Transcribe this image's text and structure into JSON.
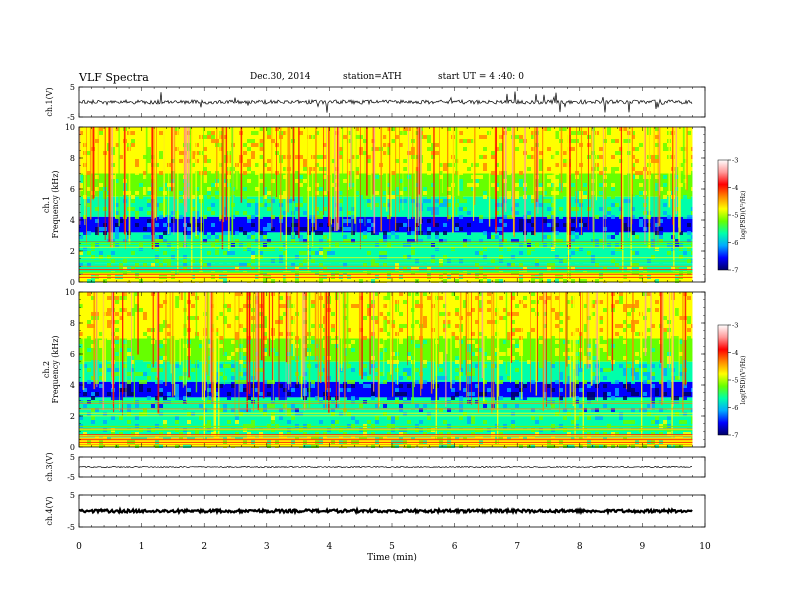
{
  "header": {
    "title": "VLF  Spectra",
    "date": "Dec.30, 2014",
    "station": "station=ATH",
    "start": "start  UT  =   4  :40: 0"
  },
  "chart_data": [
    {
      "type": "line",
      "panel": "ch1-waveform",
      "ylabel": "ch.1(V)",
      "yticks": [
        "5",
        "-5"
      ],
      "ylim": [
        -5,
        5
      ],
      "xlim": [
        0,
        10
      ],
      "baseline": 0,
      "x_end": 9.8
    },
    {
      "type": "heatmap",
      "panel": "ch1-spectrogram",
      "ylabel": "ch.1\nFrequency (kHz)",
      "ylabel_lines": [
        "ch.1",
        "Frequency (kHz)"
      ],
      "yticks": [
        "0",
        "2",
        "4",
        "6",
        "8",
        "10"
      ],
      "ylim": [
        0,
        10
      ],
      "xlim": [
        0,
        10
      ],
      "x_end": 9.8,
      "colorbar": {
        "label": "log(PSD)(V²/Hz)",
        "range": [
          -7,
          -3
        ],
        "ticks": [
          "-3",
          "-4",
          "-5",
          "-6",
          "-7"
        ],
        "colors": [
          "#000066",
          "#0000ff",
          "#00aaff",
          "#00ffaa",
          "#66ff00",
          "#ffff00",
          "#ff8800",
          "#ff0000",
          "#ff9999",
          "#ffffff"
        ]
      }
    },
    {
      "type": "heatmap",
      "panel": "ch2-spectrogram",
      "ylabel": "ch.2\nFrequency (kHz)",
      "ylabel_lines": [
        "ch.2",
        "Frequency (kHz)"
      ],
      "yticks": [
        "0",
        "2",
        "4",
        "6",
        "8",
        "10"
      ],
      "ylim": [
        0,
        10
      ],
      "xlim": [
        0,
        10
      ],
      "x_end": 9.8,
      "colorbar": {
        "label": "log(PSD)(V²/Hz)",
        "range": [
          -7,
          -3
        ],
        "ticks": [
          "-3",
          "-4",
          "-5",
          "-6",
          "-7"
        ],
        "colors": [
          "#000066",
          "#0000ff",
          "#00aaff",
          "#00ffaa",
          "#66ff00",
          "#ffff00",
          "#ff8800",
          "#ff0000",
          "#ff9999",
          "#ffffff"
        ]
      }
    },
    {
      "type": "line",
      "panel": "ch3-waveform",
      "ylabel": "ch.3(V)",
      "yticks": [
        "5",
        "-5"
      ],
      "ylim": [
        -5,
        5
      ],
      "xlim": [
        0,
        10
      ],
      "baseline": 0,
      "x_end": 9.8
    },
    {
      "type": "line",
      "panel": "ch4-waveform",
      "ylabel": "ch.4(V)",
      "yticks": [
        "5",
        "-5"
      ],
      "ylim": [
        -5,
        5
      ],
      "xlim": [
        0,
        10
      ],
      "baseline": 0,
      "x_end": 9.8
    }
  ],
  "xaxis": {
    "label": "Time  (min)",
    "ticks": [
      "0",
      "1",
      "2",
      "3",
      "4",
      "5",
      "6",
      "7",
      "8",
      "9",
      "10"
    ],
    "range": [
      0,
      10
    ]
  }
}
